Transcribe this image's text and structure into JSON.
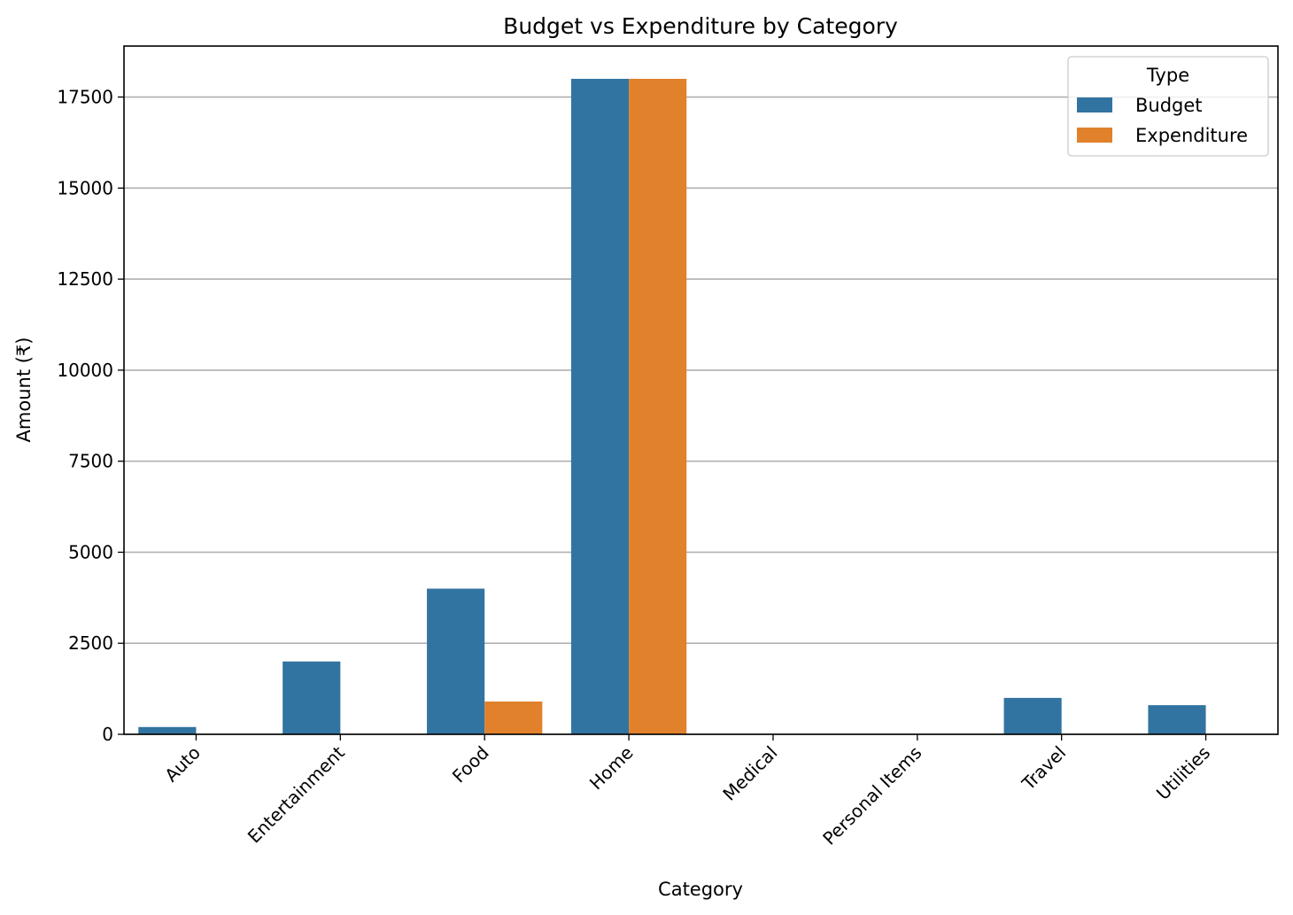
{
  "chart_data": {
    "type": "bar",
    "title": "Budget vs Expenditure by Category",
    "xlabel": "Category",
    "ylabel": "Amount (₹)",
    "categories": [
      "Auto",
      "Entertainment",
      "Food",
      "Home",
      "Medical",
      "Personal Items",
      "Travel",
      "Utilities"
    ],
    "series": [
      {
        "name": "Budget",
        "color": "#3274a1",
        "values": [
          200,
          2000,
          4000,
          18000,
          0,
          0,
          1000,
          800
        ]
      },
      {
        "name": "Expenditure",
        "color": "#e1812c",
        "values": [
          0,
          0,
          900,
          18000,
          0,
          0,
          0,
          0
        ]
      }
    ],
    "ylim": [
      0,
      18900
    ],
    "yticks": [
      0,
      2500,
      5000,
      7500,
      10000,
      12500,
      15000,
      17500
    ],
    "grid": "y",
    "legend": {
      "title": "Type",
      "position": "top-right"
    }
  }
}
